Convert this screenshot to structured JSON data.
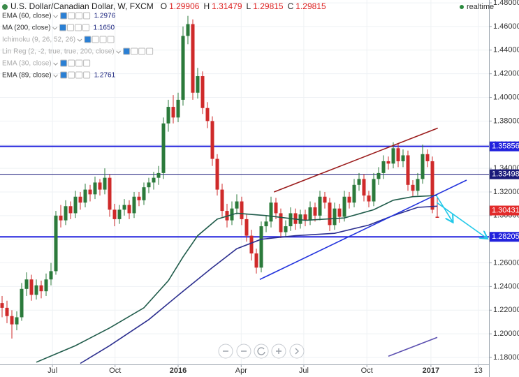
{
  "header": {
    "title": "U.S. Dollar/Canadian Dollar, W, FXCM",
    "ohlc": [
      {
        "label": "O",
        "value": 1.29906
      },
      {
        "label": "H",
        "value": 1.31479
      },
      {
        "label": "L",
        "value": 1.29815
      },
      {
        "label": "C",
        "value": 1.29815
      }
    ],
    "status": "realtime"
  },
  "indicators": [
    {
      "name": "EMA (60, close)",
      "value": 1.2976
    },
    {
      "name": "MA (200, close)",
      "value": 1.165,
      "value_label": "1.1650"
    },
    {
      "name": "Ichimoku (9, 26, 52, 26)",
      "hidden": true
    },
    {
      "name": "Lin Reg (2, -2, true, true, 200, close)",
      "hidden": true
    },
    {
      "name": "EMA (30, close)",
      "hidden": true
    },
    {
      "name": "EMA (89, close)",
      "value": 1.2761
    }
  ],
  "chart_data": {
    "type": "candlestick",
    "xlim": [
      -0.43,
      99.57
    ],
    "ylim": [
      1.1741,
      1.4824
    ],
    "xticks": [
      {
        "value": 10.3,
        "label": "Jul"
      },
      {
        "value": 23.1,
        "label": "Oct"
      },
      {
        "value": 36,
        "label": "2016",
        "bold": true
      },
      {
        "value": 48.9,
        "label": "Apr"
      },
      {
        "value": 61.7,
        "label": "Jul"
      },
      {
        "value": 74.6,
        "label": "Oct"
      },
      {
        "value": 87.7,
        "label": "2017",
        "bold": true
      },
      {
        "value": 97.4,
        "label": "13"
      }
    ],
    "yticks": [
      {
        "value": 1.18,
        "label": "1.18000"
      },
      {
        "value": 1.2,
        "label": "1.20000"
      },
      {
        "value": 1.22,
        "label": "1.22000"
      },
      {
        "value": 1.24,
        "label": "1.24000"
      },
      {
        "value": 1.26,
        "label": "1.26000"
      },
      {
        "value": 1.28,
        "label": "1.28000"
      },
      {
        "value": 1.3,
        "label": "1.30000"
      },
      {
        "value": 1.32,
        "label": "1.32000"
      },
      {
        "value": 1.34,
        "label": "1.34000"
      },
      {
        "value": 1.36,
        "label": "1.36000"
      },
      {
        "value": 1.38,
        "label": "1.38000"
      },
      {
        "value": 1.4,
        "label": "1.40000"
      },
      {
        "value": 1.42,
        "label": "1.42000"
      },
      {
        "value": 1.44,
        "label": "1.44000"
      },
      {
        "value": 1.46,
        "label": "1.46000"
      },
      {
        "value": 1.48,
        "label": "1.48000"
      }
    ],
    "grid": true,
    "up_color": "#2b7a3b",
    "down_color": "#cf2a2a",
    "x": [
      0,
      1,
      2,
      3,
      4,
      5,
      6,
      7,
      8,
      9,
      10,
      11,
      12,
      13,
      14,
      15,
      16,
      17,
      18,
      19,
      20,
      21,
      22,
      23,
      24,
      25,
      26,
      27,
      28,
      29,
      30,
      31,
      32,
      33,
      34,
      35,
      36,
      37,
      38,
      39,
      40,
      41,
      42,
      43,
      44,
      45,
      46,
      47,
      48,
      49,
      50,
      51,
      52,
      53,
      54,
      55,
      56,
      57,
      58,
      59,
      60,
      61,
      62,
      63,
      64,
      65,
      66,
      67,
      68,
      69,
      70,
      71,
      72,
      73,
      74,
      75,
      76,
      77,
      78,
      79,
      80,
      81,
      82,
      83,
      84,
      85,
      86,
      87,
      88,
      89
    ],
    "open": [
      1.226,
      1.222,
      1.215,
      1.208,
      1.214,
      1.238,
      1.246,
      1.233,
      1.241,
      1.236,
      1.246,
      1.253,
      1.3,
      1.296,
      1.308,
      1.302,
      1.316,
      1.311,
      1.322,
      1.318,
      1.328,
      1.322,
      1.332,
      1.305,
      1.297,
      1.305,
      1.309,
      1.302,
      1.316,
      1.313,
      1.324,
      1.328,
      1.332,
      1.336,
      1.378,
      1.392,
      1.383,
      1.398,
      1.452,
      1.462,
      1.404,
      1.418,
      1.391,
      1.38,
      1.348,
      1.322,
      1.304,
      1.296,
      1.306,
      1.312,
      1.297,
      1.283,
      1.268,
      1.256,
      1.291,
      1.295,
      1.311,
      1.302,
      1.286,
      1.291,
      1.302,
      1.293,
      1.301,
      1.296,
      1.307,
      1.3,
      1.316,
      1.311,
      1.292,
      1.306,
      1.299,
      1.316,
      1.311,
      1.326,
      1.331,
      1.317,
      1.312,
      1.331,
      1.336,
      1.346,
      1.344,
      1.357,
      1.346,
      1.351,
      1.326,
      1.321,
      1.331,
      1.352,
      1.346,
      1.29906
    ],
    "high": [
      1.232,
      1.228,
      1.22,
      1.219,
      1.243,
      1.252,
      1.25,
      1.246,
      1.245,
      1.251,
      1.26,
      1.304,
      1.309,
      1.313,
      1.312,
      1.321,
      1.32,
      1.327,
      1.326,
      1.333,
      1.331,
      1.34,
      1.335,
      1.31,
      1.309,
      1.314,
      1.313,
      1.32,
      1.32,
      1.328,
      1.332,
      1.337,
      1.342,
      1.383,
      1.398,
      1.402,
      1.404,
      1.46,
      1.469,
      1.466,
      1.425,
      1.422,
      1.396,
      1.384,
      1.352,
      1.327,
      1.31,
      1.312,
      1.318,
      1.316,
      1.301,
      1.288,
      1.272,
      1.295,
      1.3,
      1.316,
      1.315,
      1.306,
      1.296,
      1.307,
      1.306,
      1.305,
      1.305,
      1.312,
      1.311,
      1.321,
      1.32,
      1.315,
      1.311,
      1.31,
      1.321,
      1.32,
      1.331,
      1.336,
      1.335,
      1.321,
      1.336,
      1.341,
      1.351,
      1.35,
      1.362,
      1.361,
      1.356,
      1.355,
      1.33,
      1.336,
      1.36,
      1.356,
      1.35,
      1.31479
    ],
    "low": [
      1.214,
      1.209,
      1.196,
      1.203,
      1.211,
      1.232,
      1.228,
      1.229,
      1.23,
      1.232,
      1.241,
      1.25,
      1.29,
      1.292,
      1.297,
      1.298,
      1.305,
      1.307,
      1.312,
      1.314,
      1.317,
      1.318,
      1.299,
      1.291,
      1.293,
      1.3,
      1.297,
      1.298,
      1.308,
      1.309,
      1.319,
      1.322,
      1.326,
      1.331,
      1.371,
      1.378,
      1.379,
      1.393,
      1.445,
      1.398,
      1.399,
      1.386,
      1.374,
      1.342,
      1.317,
      1.299,
      1.29,
      1.292,
      1.301,
      1.292,
      1.278,
      1.262,
      1.251,
      1.252,
      1.286,
      1.29,
      1.297,
      1.281,
      1.282,
      1.287,
      1.288,
      1.289,
      1.291,
      1.292,
      1.295,
      1.296,
      1.306,
      1.287,
      1.288,
      1.294,
      1.295,
      1.306,
      1.307,
      1.321,
      1.312,
      1.307,
      1.308,
      1.326,
      1.331,
      1.339,
      1.34,
      1.341,
      1.341,
      1.321,
      1.316,
      1.317,
      1.327,
      1.341,
      1.302,
      1.29815
    ],
    "close": [
      1.222,
      1.215,
      1.208,
      1.214,
      1.238,
      1.246,
      1.233,
      1.241,
      1.236,
      1.246,
      1.253,
      1.3,
      1.296,
      1.308,
      1.302,
      1.316,
      1.311,
      1.322,
      1.318,
      1.328,
      1.322,
      1.332,
      1.305,
      1.297,
      1.305,
      1.309,
      1.302,
      1.316,
      1.313,
      1.324,
      1.328,
      1.332,
      1.336,
      1.378,
      1.392,
      1.383,
      1.398,
      1.452,
      1.462,
      1.404,
      1.418,
      1.391,
      1.38,
      1.348,
      1.322,
      1.304,
      1.296,
      1.306,
      1.312,
      1.297,
      1.283,
      1.268,
      1.256,
      1.291,
      1.295,
      1.311,
      1.302,
      1.286,
      1.291,
      1.302,
      1.293,
      1.301,
      1.296,
      1.307,
      1.3,
      1.316,
      1.311,
      1.292,
      1.306,
      1.299,
      1.316,
      1.311,
      1.326,
      1.331,
      1.317,
      1.312,
      1.331,
      1.336,
      1.346,
      1.344,
      1.357,
      1.346,
      1.351,
      1.326,
      1.321,
      1.331,
      1.352,
      1.346,
      1.305,
      1.29815
    ],
    "lines": [
      {
        "color": "#1f5b4a",
        "x": [
          7,
          15,
          22,
          29,
          34,
          37,
          40,
          44,
          48,
          54,
          62,
          70,
          76,
          80,
          84,
          89
        ],
        "values": [
          1.176,
          1.19,
          1.205,
          1.222,
          1.245,
          1.265,
          1.283,
          1.297,
          1.302,
          1.3,
          1.296,
          1.298,
          1.305,
          1.313,
          1.316,
          1.317
        ]
      },
      {
        "color": "#2c2f8f",
        "x": [
          16,
          22,
          30,
          37,
          43,
          48,
          53,
          60,
          68,
          75,
          80,
          85,
          89
        ],
        "values": [
          1.175,
          1.19,
          1.212,
          1.236,
          1.256,
          1.272,
          1.28,
          1.283,
          1.285,
          1.292,
          1.3,
          1.307,
          1.308
        ]
      },
      {
        "color": "#5b4fb0",
        "x": [
          79,
          89
        ],
        "values": [
          1.181,
          1.197
        ]
      }
    ],
    "trendlines": [
      {
        "color": "#9b1c1c",
        "x": [
          55.6,
          89.1
        ],
        "values": [
          1.32,
          1.374
        ]
      },
      {
        "color": "#2233dd",
        "x": [
          52.7,
          95
        ],
        "values": [
          1.246,
          1.33
        ]
      },
      {
        "color": "#22c8e8",
        "x": [
          88.8,
          92.1
        ],
        "values": [
          1.317,
          1.295
        ],
        "arrow": true
      },
      {
        "color": "#22c8e8",
        "x": [
          88.9,
          99.1
        ],
        "values": [
          1.311,
          1.281
        ],
        "arrow": true
      }
    ],
    "levels": [
      {
        "value": 1.35856,
        "color": "#2222dd",
        "width": 2
      },
      {
        "value": 1.33498,
        "color": "#1a1a7a",
        "width": 1
      },
      {
        "value": 1.28205,
        "color": "#2222dd",
        "width": 2
      }
    ],
    "price": {
      "value": 1.30431,
      "color": "#e22a2a"
    }
  }
}
